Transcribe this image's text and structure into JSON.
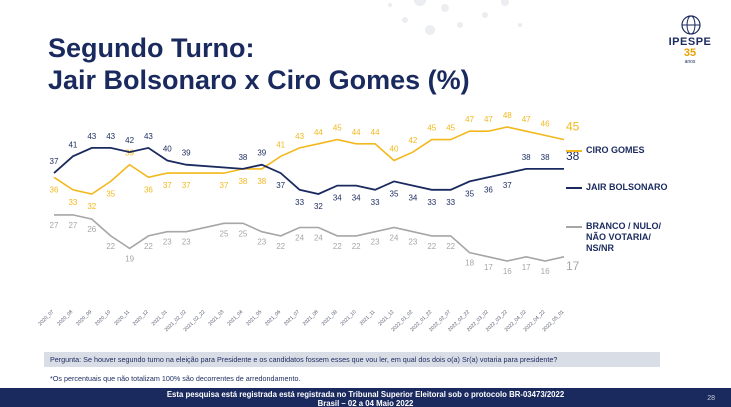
{
  "title": {
    "line1": "Segundo Turno:",
    "line2": "Jair Bolsonaro x Ciro Gomes (%)"
  },
  "logo": {
    "name": "IPESPE",
    "years": "35",
    "sub": "anos"
  },
  "colors": {
    "title": "#1a2a5e",
    "ciro": "#f2b81d",
    "bolsonaro": "#1a2a5e",
    "branco": "#a6a6a6",
    "footer_bg": "#1a2a5e",
    "question_bg": "#d9dde6"
  },
  "chart_data": {
    "type": "line",
    "categories": [
      "2020_07",
      "2020_08",
      "2020_09",
      "2020_10",
      "2020_11",
      "2020_12",
      "2021_01",
      "2021_02_02",
      "2021_02_22",
      "2021_03",
      "2021_04",
      "2021_05",
      "2021_06",
      "2021_07",
      "2021_08",
      "2021_09",
      "2021_10",
      "2021_11",
      "2021_12",
      "2022_01_02",
      "2022_01_22",
      "2022_02_07",
      "2022_02_22",
      "2022_03_02",
      "2022_03_22",
      "2022_04_02",
      "2022_04_22",
      "2022_05_01"
    ],
    "series": [
      {
        "name": "CIRO GOMES",
        "color": "#f2b81d",
        "values": [
          36,
          33,
          32,
          35,
          39,
          36,
          37,
          37,
          null,
          37,
          38,
          38,
          41,
          43,
          44,
          45,
          44,
          44,
          40,
          42,
          45,
          45,
          47,
          47,
          48,
          47,
          46,
          45
        ]
      },
      {
        "name": "JAIR BOLSONARO",
        "color": "#1a2a5e",
        "values": [
          37,
          41,
          43,
          43,
          42,
          43,
          40,
          39,
          null,
          null,
          38,
          39,
          37,
          33,
          32,
          34,
          34,
          33,
          35,
          34,
          33,
          33,
          35,
          36,
          37,
          38,
          38,
          38
        ]
      },
      {
        "name": "BRANCO / NULO/ NÃO VOTARIA/ NS/NR",
        "color": "#a6a6a6",
        "values": [
          27,
          27,
          26,
          22,
          19,
          22,
          23,
          23,
          null,
          25,
          25,
          23,
          22,
          24,
          24,
          22,
          22,
          23,
          24,
          23,
          22,
          22,
          18,
          17,
          16,
          17,
          16,
          17
        ]
      }
    ],
    "hidden_labels": [
      [
        8
      ],
      [
        8,
        9
      ],
      [
        8
      ]
    ],
    "legend": [
      "CIRO GOMES",
      "JAIR BOLSONARO",
      "BRANCO / NULO/",
      "NÃO VOTARIA/",
      "NS/NR"
    ],
    "legend_position": "right",
    "grid": false
  },
  "question": "Pergunta:  Se houver segundo turno na eleição para Presidente e os candidatos fossem esses que vou ler, em qual dos dois o(a) Sr(a) votaria para presidente?",
  "note": "*Os percentuais que não totalizam 100% são decorrentes de arredondamento.",
  "footer": {
    "line1": "Esta pesquisa está registrada está registrada no Tribunal Superior Eleitoral sob o protocolo BR-03473/2022",
    "line2": "Brasil – 02 a 04 Maio 2022"
  },
  "page_number": "28"
}
